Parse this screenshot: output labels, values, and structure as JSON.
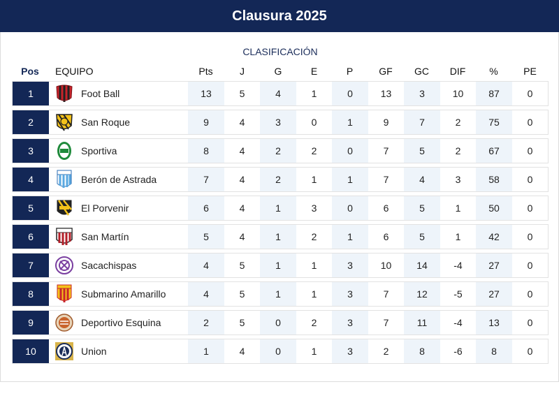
{
  "title": "Clausura 2025",
  "subtitle": "CLASIFICACIÓN",
  "columns": {
    "pos": "Pos",
    "team": "EQUIPO",
    "pts": "Pts",
    "j": "J",
    "g": "G",
    "e": "E",
    "p": "P",
    "gf": "GF",
    "gc": "GC",
    "dif": "DIF",
    "pct": "%",
    "pe": "PE"
  },
  "colors": {
    "header_bg": "#132756",
    "shade": "#eef4fa"
  },
  "rows": [
    {
      "pos": "1",
      "team": "Foot Ball",
      "crest": "foot-ball-crest-icon",
      "pts": "13",
      "j": "5",
      "g": "4",
      "e": "1",
      "p": "0",
      "gf": "13",
      "gc": "3",
      "dif": "10",
      "pct": "87",
      "pe": "0"
    },
    {
      "pos": "2",
      "team": "San Roque",
      "crest": "san-roque-crest-icon",
      "pts": "9",
      "j": "4",
      "g": "3",
      "e": "0",
      "p": "1",
      "gf": "9",
      "gc": "7",
      "dif": "2",
      "pct": "75",
      "pe": "0"
    },
    {
      "pos": "3",
      "team": "Sportiva",
      "crest": "sportiva-crest-icon",
      "pts": "8",
      "j": "4",
      "g": "2",
      "e": "2",
      "p": "0",
      "gf": "7",
      "gc": "5",
      "dif": "2",
      "pct": "67",
      "pe": "0"
    },
    {
      "pos": "4",
      "team": "Berón de Astrada",
      "crest": "beron-de-astrada-crest-icon",
      "pts": "7",
      "j": "4",
      "g": "2",
      "e": "1",
      "p": "1",
      "gf": "7",
      "gc": "4",
      "dif": "3",
      "pct": "58",
      "pe": "0"
    },
    {
      "pos": "5",
      "team": "El Porvenir",
      "crest": "el-porvenir-crest-icon",
      "pts": "6",
      "j": "4",
      "g": "1",
      "e": "3",
      "p": "0",
      "gf": "6",
      "gc": "5",
      "dif": "1",
      "pct": "50",
      "pe": "0"
    },
    {
      "pos": "6",
      "team": "San Martín",
      "crest": "san-martin-crest-icon",
      "pts": "5",
      "j": "4",
      "g": "1",
      "e": "2",
      "p": "1",
      "gf": "6",
      "gc": "5",
      "dif": "1",
      "pct": "42",
      "pe": "0"
    },
    {
      "pos": "7",
      "team": "Sacachispas",
      "crest": "sacachispas-crest-icon",
      "pts": "4",
      "j": "5",
      "g": "1",
      "e": "1",
      "p": "3",
      "gf": "10",
      "gc": "14",
      "dif": "-4",
      "pct": "27",
      "pe": "0"
    },
    {
      "pos": "8",
      "team": "Submarino Amarillo",
      "crest": "submarino-amarillo-crest-icon",
      "pts": "4",
      "j": "5",
      "g": "1",
      "e": "1",
      "p": "3",
      "gf": "7",
      "gc": "12",
      "dif": "-5",
      "pct": "27",
      "pe": "0"
    },
    {
      "pos": "9",
      "team": "Deportivo Esquina",
      "crest": "deportivo-esquina-crest-icon",
      "pts": "2",
      "j": "5",
      "g": "0",
      "e": "2",
      "p": "3",
      "gf": "7",
      "gc": "11",
      "dif": "-4",
      "pct": "13",
      "pe": "0"
    },
    {
      "pos": "10",
      "team": "Union",
      "crest": "union-crest-icon",
      "pts": "1",
      "j": "4",
      "g": "0",
      "e": "1",
      "p": "3",
      "gf": "2",
      "gc": "8",
      "dif": "-6",
      "pct": "8",
      "pe": "0"
    }
  ]
}
